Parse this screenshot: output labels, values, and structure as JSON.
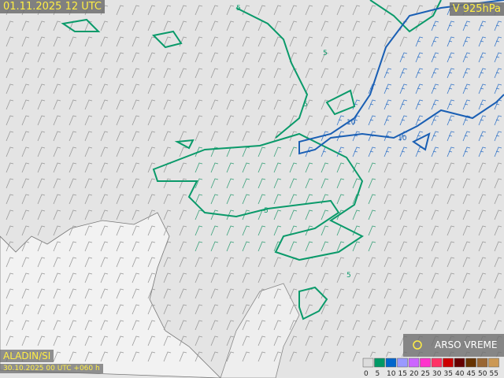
{
  "header": {
    "valid_time": "01.11.2025 12 UTC",
    "level": "V 925hPa"
  },
  "footer": {
    "model": "ALADIN/SI",
    "run": "30.10.2025 00 UTC +060 h",
    "brand": "ARSO VREME"
  },
  "contour_labels": [
    "5",
    "5",
    "5",
    "5",
    "10",
    "10",
    "5"
  ],
  "legend": {
    "values": [
      0,
      5,
      10,
      15,
      20,
      25,
      30,
      35,
      40,
      45,
      50,
      55
    ],
    "colors": [
      "#dcdcdc",
      "#009966",
      "#0066cc",
      "#9999ff",
      "#cc66ff",
      "#ff33cc",
      "#ff3366",
      "#cc0000",
      "#660000",
      "#663300",
      "#996633",
      "#cc9955"
    ]
  }
}
